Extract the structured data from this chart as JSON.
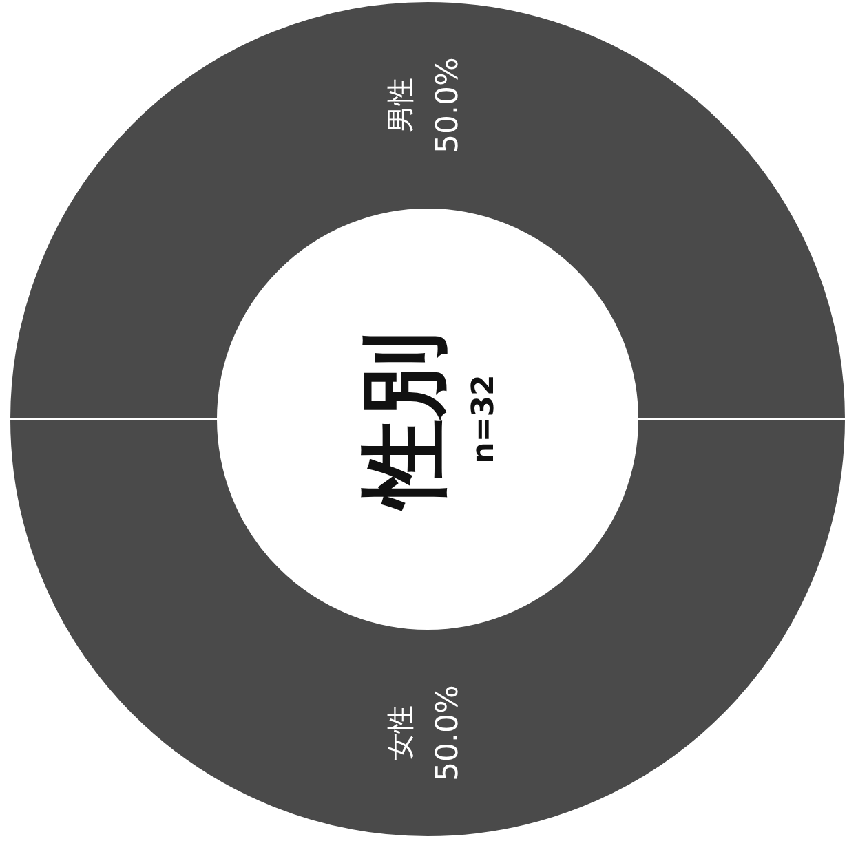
{
  "chart_data": {
    "type": "donut",
    "title": "性別",
    "subtitle": "n=32",
    "categories": [
      "男性",
      "女性"
    ],
    "values": [
      50,
      50
    ],
    "colors": [
      "#4a4a4a",
      "#4a4a4a"
    ],
    "value_labels": [
      "50.0%",
      "50.0%"
    ],
    "legend": false
  }
}
